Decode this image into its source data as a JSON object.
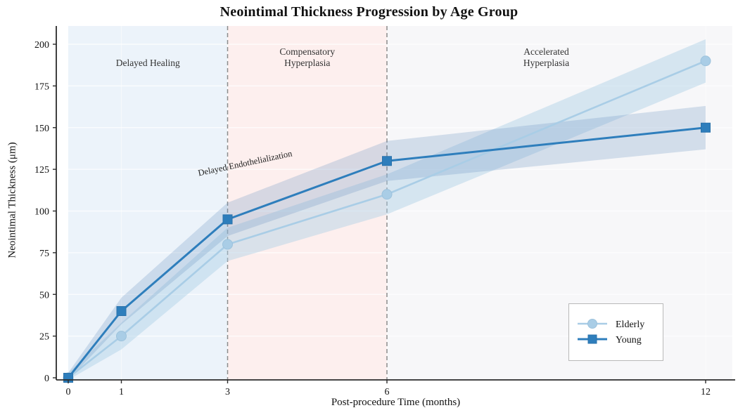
{
  "title": "Neointimal Thickness Progression by Age Group",
  "chart_data": {
    "type": "line",
    "title": "Neointimal Thickness Progression by Age Group",
    "xlabel": "Post-procedure Time (months)",
    "ylabel": "Neointimal Thickness (μm)",
    "x": [
      0,
      1,
      3,
      6,
      12
    ],
    "xticks": [
      0,
      1,
      3,
      6,
      12
    ],
    "yticks": [
      0,
      25,
      50,
      75,
      100,
      125,
      150,
      175,
      200
    ],
    "xlim": [
      -0.22,
      12.55
    ],
    "ylim": [
      0,
      211
    ],
    "grid": "white gridlines visible over shaded regions",
    "series": [
      {
        "name": "Elderly",
        "marker": "circle",
        "color": "#a9cde6",
        "edge_color": "#9cc2dc",
        "band_color": "rgba(168,205,229,0.42)",
        "values": [
          0,
          25,
          80,
          110,
          190
        ],
        "band_halfwidth": [
          3,
          8,
          10,
          12,
          13
        ]
      },
      {
        "name": "Young",
        "marker": "square",
        "color": "#2e7ebc",
        "edge_color": "#2a72ab",
        "band_color": "rgba(104,148,194,0.26)",
        "values": [
          0,
          40,
          95,
          130,
          150
        ],
        "band_halfwidth": [
          3,
          8,
          10,
          12,
          13
        ]
      }
    ],
    "regions": [
      {
        "label": "Delayed Healing",
        "from": 0,
        "to": 3,
        "label_x": 1.5,
        "color": "#ecf3fa"
      },
      {
        "label": "Compensatory\nHyperplasia",
        "from": 3,
        "to": 6,
        "label_x": 4.5,
        "color": "#fdefee"
      },
      {
        "label": "Accelerated\nHyperplasia",
        "from": 6,
        "to": 12.5,
        "label_x": 9,
        "color": "#f7f7f9"
      }
    ],
    "dashed_vlines": [
      3,
      6
    ],
    "annotation": {
      "text": "Delayed Endothelialization",
      "x": 3.34,
      "y": 127,
      "rotation_deg": -12
    },
    "legend": {
      "position": "lower right",
      "items": [
        "Elderly",
        "Young"
      ]
    },
    "colors": {
      "spine": "#2b2b2b",
      "tick_text": "#111111",
      "region_label_text": "#333333",
      "dashed_line": "#8c8c8c",
      "legend_border": "#b9b9b9",
      "legend_bg": "#ffffff"
    }
  }
}
